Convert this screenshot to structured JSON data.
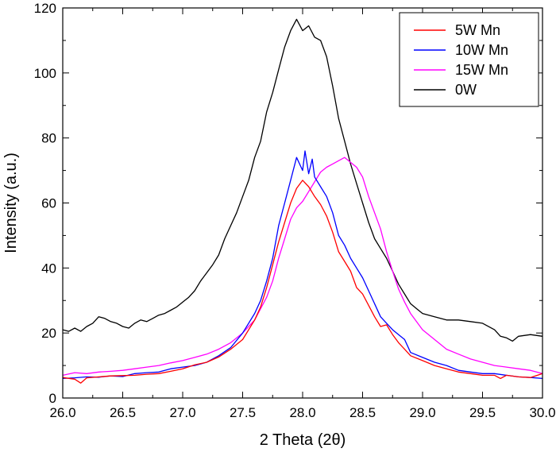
{
  "chart_data": {
    "type": "line",
    "title": "",
    "xlabel": "2 Theta (2θ)",
    "ylabel": "Intensity (a.u.)",
    "xlim": [
      26.0,
      30.0
    ],
    "ylim": [
      0,
      120
    ],
    "x_ticks": [
      "26.0",
      "26.5",
      "27.0",
      "27.5",
      "28.0",
      "28.5",
      "29.0",
      "29.5",
      "30.0"
    ],
    "y_ticks": [
      "0",
      "20",
      "40",
      "60",
      "80",
      "100",
      "120"
    ],
    "grid": false,
    "legend_position": "top-right",
    "series": [
      {
        "name": "5W Mn",
        "color": "#ff0000",
        "points": [
          [
            26.0,
            6.3
          ],
          [
            26.1,
            5.8
          ],
          [
            26.15,
            4.6
          ],
          [
            26.2,
            6.2
          ],
          [
            26.3,
            6.5
          ],
          [
            26.4,
            6.8
          ],
          [
            26.5,
            6.9
          ],
          [
            26.6,
            7.0
          ],
          [
            26.7,
            7.3
          ],
          [
            26.8,
            7.5
          ],
          [
            26.9,
            8.2
          ],
          [
            27.0,
            9.0
          ],
          [
            27.1,
            10.2
          ],
          [
            27.2,
            11.0
          ],
          [
            27.3,
            12.6
          ],
          [
            27.4,
            15.0
          ],
          [
            27.5,
            18.0
          ],
          [
            27.6,
            24.0
          ],
          [
            27.65,
            28.0
          ],
          [
            27.7,
            34.0
          ],
          [
            27.75,
            41.0
          ],
          [
            27.8,
            48.0
          ],
          [
            27.85,
            54.0
          ],
          [
            27.9,
            60.0
          ],
          [
            27.95,
            64.5
          ],
          [
            28.0,
            67.0
          ],
          [
            28.05,
            65.0
          ],
          [
            28.1,
            62.0
          ],
          [
            28.15,
            59.5
          ],
          [
            28.2,
            56.0
          ],
          [
            28.25,
            51.0
          ],
          [
            28.3,
            45.0
          ],
          [
            28.35,
            42.0
          ],
          [
            28.4,
            39.0
          ],
          [
            28.45,
            34.0
          ],
          [
            28.5,
            32.0
          ],
          [
            28.55,
            28.5
          ],
          [
            28.6,
            25.0
          ],
          [
            28.65,
            22.0
          ],
          [
            28.7,
            22.5
          ],
          [
            28.75,
            19.5
          ],
          [
            28.8,
            17.0
          ],
          [
            28.85,
            15.0
          ],
          [
            28.9,
            13.0
          ],
          [
            29.0,
            11.5
          ],
          [
            29.1,
            10.0
          ],
          [
            29.2,
            9.0
          ],
          [
            29.3,
            8.0
          ],
          [
            29.4,
            7.5
          ],
          [
            29.5,
            7.0
          ],
          [
            29.6,
            7.0
          ],
          [
            29.65,
            6.0
          ],
          [
            29.7,
            7.0
          ],
          [
            29.8,
            6.5
          ],
          [
            29.9,
            6.3
          ],
          [
            30.0,
            7.5
          ]
        ]
      },
      {
        "name": "10W Mn",
        "color": "#0000ff",
        "points": [
          [
            26.0,
            6.0
          ],
          [
            26.1,
            6.2
          ],
          [
            26.2,
            6.5
          ],
          [
            26.3,
            6.4
          ],
          [
            26.4,
            6.8
          ],
          [
            26.5,
            6.6
          ],
          [
            26.6,
            7.5
          ],
          [
            26.7,
            7.8
          ],
          [
            26.8,
            8.0
          ],
          [
            26.9,
            9.0
          ],
          [
            27.0,
            9.5
          ],
          [
            27.1,
            10.0
          ],
          [
            27.2,
            11.0
          ],
          [
            27.3,
            13.0
          ],
          [
            27.4,
            15.5
          ],
          [
            27.5,
            20.0
          ],
          [
            27.6,
            26.0
          ],
          [
            27.65,
            30.0
          ],
          [
            27.7,
            36.0
          ],
          [
            27.75,
            43.0
          ],
          [
            27.8,
            53.0
          ],
          [
            27.85,
            60.0
          ],
          [
            27.9,
            67.0
          ],
          [
            27.95,
            74.0
          ],
          [
            28.0,
            70.0
          ],
          [
            28.02,
            76.0
          ],
          [
            28.05,
            69.0
          ],
          [
            28.08,
            73.5
          ],
          [
            28.1,
            68.0
          ],
          [
            28.15,
            65.0
          ],
          [
            28.2,
            62.0
          ],
          [
            28.25,
            57.0
          ],
          [
            28.3,
            50.0
          ],
          [
            28.35,
            47.0
          ],
          [
            28.4,
            43.0
          ],
          [
            28.45,
            40.0
          ],
          [
            28.5,
            37.0
          ],
          [
            28.55,
            33.0
          ],
          [
            28.6,
            29.0
          ],
          [
            28.65,
            25.0
          ],
          [
            28.7,
            23.0
          ],
          [
            28.75,
            21.0
          ],
          [
            28.8,
            19.5
          ],
          [
            28.85,
            18.0
          ],
          [
            28.9,
            14.0
          ],
          [
            29.0,
            12.5
          ],
          [
            29.1,
            11.0
          ],
          [
            29.2,
            10.0
          ],
          [
            29.3,
            8.5
          ],
          [
            29.4,
            8.0
          ],
          [
            29.5,
            7.5
          ],
          [
            29.6,
            7.5
          ],
          [
            29.7,
            7.0
          ],
          [
            29.8,
            6.5
          ],
          [
            29.9,
            6.3
          ],
          [
            30.0,
            6.0
          ]
        ]
      },
      {
        "name": "15W Mn",
        "color": "#ff00ff",
        "points": [
          [
            26.0,
            7.0
          ],
          [
            26.1,
            7.8
          ],
          [
            26.2,
            7.5
          ],
          [
            26.3,
            8.0
          ],
          [
            26.4,
            8.2
          ],
          [
            26.5,
            8.5
          ],
          [
            26.6,
            9.0
          ],
          [
            26.7,
            9.5
          ],
          [
            26.8,
            10.0
          ],
          [
            26.9,
            10.8
          ],
          [
            27.0,
            11.5
          ],
          [
            27.1,
            12.5
          ],
          [
            27.2,
            13.5
          ],
          [
            27.3,
            15.0
          ],
          [
            27.4,
            17.0
          ],
          [
            27.5,
            20.0
          ],
          [
            27.6,
            24.0
          ],
          [
            27.7,
            31.0
          ],
          [
            27.75,
            36.0
          ],
          [
            27.8,
            43.0
          ],
          [
            27.85,
            49.0
          ],
          [
            27.9,
            55.0
          ],
          [
            27.95,
            58.5
          ],
          [
            28.0,
            60.5
          ],
          [
            28.05,
            63.5
          ],
          [
            28.1,
            66.5
          ],
          [
            28.15,
            69.5
          ],
          [
            28.2,
            71.0
          ],
          [
            28.25,
            72.0
          ],
          [
            28.3,
            73.0
          ],
          [
            28.35,
            74.0
          ],
          [
            28.4,
            72.5
          ],
          [
            28.45,
            71.0
          ],
          [
            28.5,
            68.0
          ],
          [
            28.55,
            62.0
          ],
          [
            28.6,
            57.0
          ],
          [
            28.65,
            52.0
          ],
          [
            28.7,
            45.0
          ],
          [
            28.75,
            39.0
          ],
          [
            28.8,
            33.5
          ],
          [
            28.85,
            29.5
          ],
          [
            28.9,
            26.0
          ],
          [
            29.0,
            21.0
          ],
          [
            29.1,
            18.0
          ],
          [
            29.2,
            15.0
          ],
          [
            29.3,
            13.5
          ],
          [
            29.4,
            12.0
          ],
          [
            29.5,
            11.0
          ],
          [
            29.6,
            10.0
          ],
          [
            29.7,
            9.5
          ],
          [
            29.8,
            9.0
          ],
          [
            29.9,
            8.5
          ],
          [
            30.0,
            7.5
          ]
        ]
      },
      {
        "name": "0W",
        "color": "#000000",
        "points": [
          [
            26.0,
            21.0
          ],
          [
            26.05,
            20.5
          ],
          [
            26.1,
            21.5
          ],
          [
            26.15,
            20.5
          ],
          [
            26.2,
            22.0
          ],
          [
            26.25,
            23.0
          ],
          [
            26.3,
            25.0
          ],
          [
            26.35,
            24.5
          ],
          [
            26.4,
            23.5
          ],
          [
            26.45,
            23.0
          ],
          [
            26.5,
            22.0
          ],
          [
            26.55,
            21.5
          ],
          [
            26.6,
            23.0
          ],
          [
            26.65,
            24.0
          ],
          [
            26.7,
            23.5
          ],
          [
            26.75,
            24.5
          ],
          [
            26.8,
            25.5
          ],
          [
            26.85,
            26.0
          ],
          [
            26.9,
            27.0
          ],
          [
            26.95,
            28.0
          ],
          [
            27.0,
            29.5
          ],
          [
            27.05,
            31.0
          ],
          [
            27.1,
            33.0
          ],
          [
            27.15,
            36.0
          ],
          [
            27.2,
            38.5
          ],
          [
            27.25,
            41.0
          ],
          [
            27.3,
            44.0
          ],
          [
            27.35,
            49.0
          ],
          [
            27.4,
            53.0
          ],
          [
            27.45,
            57.0
          ],
          [
            27.5,
            62.0
          ],
          [
            27.55,
            67.0
          ],
          [
            27.6,
            74.0
          ],
          [
            27.65,
            79.0
          ],
          [
            27.7,
            88.0
          ],
          [
            27.75,
            94.0
          ],
          [
            27.8,
            101.0
          ],
          [
            27.85,
            108.0
          ],
          [
            27.9,
            113.0
          ],
          [
            27.95,
            116.5
          ],
          [
            28.0,
            113.0
          ],
          [
            28.05,
            114.5
          ],
          [
            28.1,
            111.0
          ],
          [
            28.15,
            110.0
          ],
          [
            28.2,
            105.0
          ],
          [
            28.25,
            96.0
          ],
          [
            28.3,
            86.0
          ],
          [
            28.35,
            79.0
          ],
          [
            28.4,
            72.0
          ],
          [
            28.45,
            66.0
          ],
          [
            28.5,
            60.0
          ],
          [
            28.55,
            54.0
          ],
          [
            28.6,
            49.0
          ],
          [
            28.65,
            46.0
          ],
          [
            28.7,
            43.0
          ],
          [
            28.75,
            39.0
          ],
          [
            28.8,
            35.0
          ],
          [
            28.85,
            32.0
          ],
          [
            28.9,
            29.0
          ],
          [
            28.95,
            27.5
          ],
          [
            29.0,
            26.0
          ],
          [
            29.1,
            25.0
          ],
          [
            29.2,
            24.0
          ],
          [
            29.3,
            24.0
          ],
          [
            29.4,
            23.5
          ],
          [
            29.5,
            23.0
          ],
          [
            29.6,
            21.0
          ],
          [
            29.65,
            19.0
          ],
          [
            29.7,
            18.5
          ],
          [
            29.75,
            17.5
          ],
          [
            29.8,
            19.0
          ],
          [
            29.9,
            19.5
          ],
          [
            30.0,
            19.0
          ]
        ]
      }
    ]
  }
}
